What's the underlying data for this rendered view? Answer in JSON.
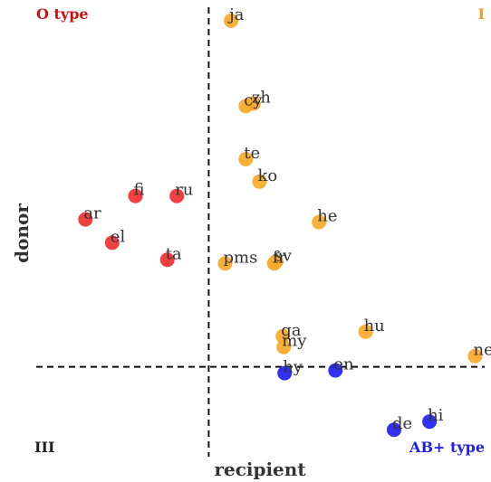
{
  "chart_data": {
    "type": "scatter",
    "title": "",
    "xlabel": "recipient",
    "ylabel": "donor",
    "xlim": [
      -2.0,
      3.2
    ],
    "ylim": [
      -1.0,
      4.0
    ],
    "grid": false,
    "reference_lines": {
      "x": 0,
      "y": 0
    },
    "quadrant_labels": {
      "top_left": "O type",
      "top_right": "I",
      "bottom_left": "III",
      "bottom_right": "AB+ type"
    },
    "series": [
      {
        "color": "#f03030",
        "points": [
          {
            "label": "fi",
            "x": -0.85,
            "y": 1.9
          },
          {
            "label": "ru",
            "x": -0.37,
            "y": 1.9
          },
          {
            "label": "ar",
            "x": -1.43,
            "y": 1.64
          },
          {
            "label": "el",
            "x": -1.12,
            "y": 1.38
          },
          {
            "label": "ta",
            "x": -0.48,
            "y": 1.19
          }
        ]
      },
      {
        "color": "#f7a928",
        "points": [
          {
            "label": "ja",
            "x": 0.26,
            "y": 3.85
          },
          {
            "label": "zh",
            "x": 0.52,
            "y": 2.93
          },
          {
            "label": "cy",
            "x": 0.43,
            "y": 2.9
          },
          {
            "label": "te",
            "x": 0.43,
            "y": 2.31
          },
          {
            "label": "ko",
            "x": 0.59,
            "y": 2.06
          },
          {
            "label": "he",
            "x": 1.28,
            "y": 1.61
          },
          {
            "label": "pms",
            "x": 0.19,
            "y": 1.15
          },
          {
            "label": "sv",
            "x": 0.78,
            "y": 1.17
          },
          {
            "label": "fr",
            "x": 0.76,
            "y": 1.15
          },
          {
            "label": "ga",
            "x": 0.86,
            "y": 0.34
          },
          {
            "label": "my",
            "x": 0.87,
            "y": 0.22
          },
          {
            "label": "hu",
            "x": 1.82,
            "y": 0.39
          },
          {
            "label": "ne",
            "x": 3.09,
            "y": 0.12
          }
        ]
      },
      {
        "color": "#2020ee",
        "points": [
          {
            "label": "hy",
            "x": 0.88,
            "y": -0.07
          },
          {
            "label": "en",
            "x": 1.47,
            "y": -0.04
          },
          {
            "label": "hi",
            "x": 2.56,
            "y": -0.61
          },
          {
            "label": "de",
            "x": 2.15,
            "y": -0.7
          }
        ]
      }
    ]
  },
  "colors": {
    "o_type": "#cc1111",
    "type_i": "#e89a20",
    "type_iii": "#222222",
    "ab_type": "#2020ee"
  }
}
